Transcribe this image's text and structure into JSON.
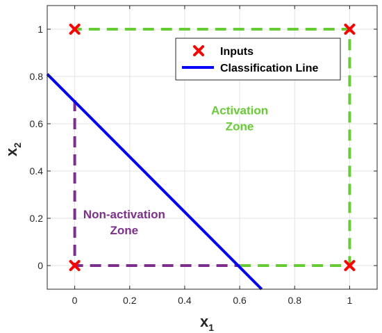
{
  "chart_data": {
    "type": "line",
    "xlabel": {
      "base": "x",
      "sub": "1"
    },
    "ylabel": {
      "base": "x",
      "sub": "2"
    },
    "xlim": [
      -0.1,
      1.1
    ],
    "ylim": [
      -0.1,
      1.1
    ],
    "xticks": [
      "0",
      "0.2",
      "0.4",
      "0.6",
      "0.8",
      "1"
    ],
    "xtick_values": [
      0,
      0.2,
      0.4,
      0.6,
      0.8,
      1
    ],
    "yticks": [
      "0",
      "0.2",
      "0.4",
      "0.6",
      "0.8",
      "1"
    ],
    "ytick_values": [
      0,
      0.2,
      0.4,
      0.6,
      0.8,
      1
    ],
    "grid": true,
    "legend_position": "top-right",
    "series": [
      {
        "name": "Inputs",
        "kind": "marker-x",
        "color": "#ff0000",
        "points": [
          [
            0,
            0
          ],
          [
            0,
            1
          ],
          [
            1,
            0
          ],
          [
            1,
            1
          ]
        ]
      },
      {
        "name": "Classification Line",
        "kind": "solid-line",
        "color": "#0000ff",
        "points": [
          [
            -0.1,
            0.81
          ],
          [
            0.68,
            -0.1
          ]
        ]
      }
    ],
    "zones": [
      {
        "label": [
          "Activation",
          "Zone"
        ],
        "color": "#66cc33",
        "boundary": [
          [
            0.6,
            0
          ],
          [
            1,
            0
          ],
          [
            1,
            1
          ],
          [
            0,
            1
          ]
        ],
        "label_at": [
          0.6,
          0.64
        ]
      },
      {
        "label": [
          "Non-activation",
          "Zone"
        ],
        "color": "#7e2f8e",
        "boundary": [
          [
            0,
            0.7
          ],
          [
            0,
            0
          ],
          [
            0.6,
            0
          ]
        ],
        "label_at": [
          0.18,
          0.2
        ]
      }
    ]
  }
}
